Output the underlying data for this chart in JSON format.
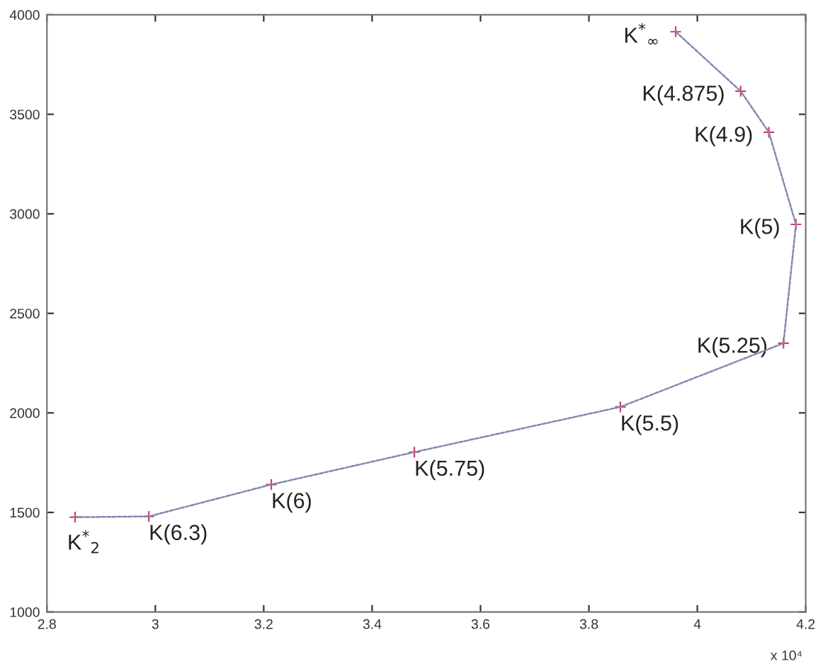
{
  "chart_data": {
    "type": "line",
    "x": [
      2.852,
      2.988,
      3.214,
      3.478,
      3.858,
      4.159,
      4.182,
      4.132,
      4.08,
      3.96
    ],
    "series": [
      {
        "color": "#8088b0",
        "colors": [
          "#d0406a",
          "#d0406a",
          "#d0406a",
          "#d0406a",
          "#d0406a",
          "#d0406a",
          "#d0406a",
          "#d0406a",
          "#d0406a",
          "#d0406a"
        ],
        "values": [
          1476,
          1480,
          1640,
          1803,
          2030,
          2350,
          2947,
          3410,
          3616,
          3915
        ]
      }
    ],
    "marker": "cross",
    "line_style": "dashed",
    "xlim": [
      2.8,
      4.2
    ],
    "xticks": [
      2.8,
      3,
      3.2,
      3.4,
      3.6,
      3.8,
      4,
      4.2
    ],
    "ylim": [
      1000,
      4000
    ],
    "yticks": [
      1000,
      1500,
      2000,
      2500,
      3000,
      3500,
      4000
    ],
    "grid": false,
    "legend": false,
    "annotations": [
      {
        "text": "K$^{*}$$_{2}$",
        "x": 2.852,
        "y": 1476
      },
      {
        "text": "K(6.3)",
        "x": 2.988,
        "y": 1480
      },
      {
        "text": "K(6)",
        "x": 3.214,
        "y": 1640
      },
      {
        "text": "K(5.75)",
        "x": 3.478,
        "y": 1803
      },
      {
        "text": "K(5.5)",
        "x": 3.858,
        "y": 2030
      },
      {
        "text": "K(5.25)",
        "x": 4.159,
        "y": 2350
      },
      {
        "text": "K(5)",
        "x": 4.182,
        "y": 2947
      },
      {
        "text": "K(4.9)",
        "x": 4.132,
        "y": 3410
      },
      {
        "text": "K(4.875)",
        "x": 4.08,
        "y": 3616
      },
      {
        "text": "K$^{*}$$_{∞}$",
        "x": 3.96,
        "y": 3915
      },
      "x 10⁴"
    ]
  }
}
